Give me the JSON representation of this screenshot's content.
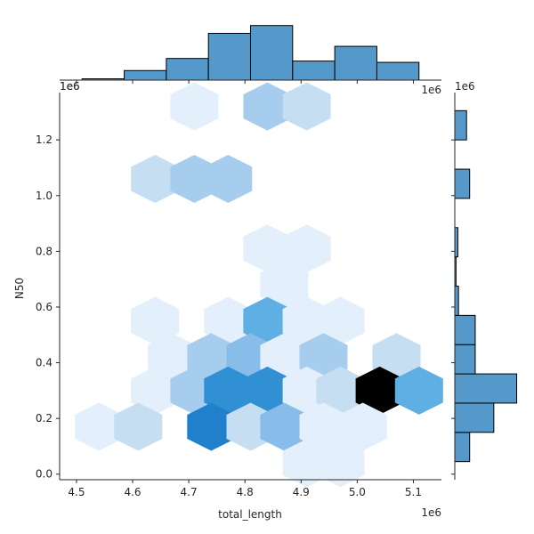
{
  "chart_data": [
    {
      "type": "heatmap",
      "subtype": "hexbin",
      "title": "",
      "xlabel": "total_length",
      "ylabel": "N50",
      "x_offset_label": "1e6",
      "y_offset_label": "1e6",
      "xlim": [
        4.47,
        5.15
      ],
      "ylim": [
        -0.02,
        1.37
      ],
      "x_ticks": [
        4.5,
        4.6,
        4.7,
        4.8,
        4.9,
        5.0,
        5.1
      ],
      "x_tick_labels": [
        "4.5",
        "4.6",
        "4.7",
        "4.8",
        "4.9",
        "5.0",
        "5.1"
      ],
      "y_ticks": [
        0.0,
        0.2,
        0.4,
        0.6,
        0.8,
        1.0,
        1.2
      ],
      "y_tick_labels": [
        "0.0",
        "0.2",
        "0.4",
        "0.6",
        "0.8",
        "1.0",
        "1.2"
      ],
      "grid": false,
      "color_low": "#e3effa",
      "color_mid": "#3a93d6",
      "color_high": "#000000",
      "hex_cells": [
        {
          "x": 4.71,
          "y": 1.32,
          "level": 1
        },
        {
          "x": 4.84,
          "y": 1.32,
          "level": 3
        },
        {
          "x": 4.91,
          "y": 1.32,
          "level": 2
        },
        {
          "x": 4.64,
          "y": 1.06,
          "level": 2
        },
        {
          "x": 4.71,
          "y": 1.06,
          "level": 3
        },
        {
          "x": 4.77,
          "y": 1.06,
          "level": 3
        },
        {
          "x": 4.84,
          "y": 0.81,
          "level": 1
        },
        {
          "x": 4.91,
          "y": 0.81,
          "level": 1
        },
        {
          "x": 4.87,
          "y": 0.68,
          "level": 1
        },
        {
          "x": 4.64,
          "y": 0.55,
          "level": 1
        },
        {
          "x": 4.77,
          "y": 0.55,
          "level": 1
        },
        {
          "x": 4.84,
          "y": 0.55,
          "level": 5
        },
        {
          "x": 4.91,
          "y": 0.55,
          "level": 1
        },
        {
          "x": 4.97,
          "y": 0.55,
          "level": 1
        },
        {
          "x": 4.67,
          "y": 0.42,
          "level": 1
        },
        {
          "x": 4.74,
          "y": 0.42,
          "level": 3
        },
        {
          "x": 4.81,
          "y": 0.42,
          "level": 4
        },
        {
          "x": 4.87,
          "y": 0.42,
          "level": 1
        },
        {
          "x": 4.94,
          "y": 0.42,
          "level": 3
        },
        {
          "x": 5.07,
          "y": 0.42,
          "level": 2
        },
        {
          "x": 4.64,
          "y": 0.3,
          "level": 1
        },
        {
          "x": 4.71,
          "y": 0.3,
          "level": 3
        },
        {
          "x": 4.77,
          "y": 0.3,
          "level": 6
        },
        {
          "x": 4.84,
          "y": 0.3,
          "level": 6
        },
        {
          "x": 4.91,
          "y": 0.3,
          "level": 1
        },
        {
          "x": 4.97,
          "y": 0.3,
          "level": 2
        },
        {
          "x": 5.04,
          "y": 0.3,
          "level": 9
        },
        {
          "x": 5.11,
          "y": 0.3,
          "level": 5
        },
        {
          "x": 4.54,
          "y": 0.17,
          "level": 1
        },
        {
          "x": 4.61,
          "y": 0.17,
          "level": 2
        },
        {
          "x": 4.74,
          "y": 0.17,
          "level": 7
        },
        {
          "x": 4.81,
          "y": 0.17,
          "level": 2
        },
        {
          "x": 4.87,
          "y": 0.17,
          "level": 4
        },
        {
          "x": 4.94,
          "y": 0.17,
          "level": 1
        },
        {
          "x": 5.01,
          "y": 0.17,
          "level": 1
        },
        {
          "x": 4.91,
          "y": 0.04,
          "level": 1
        },
        {
          "x": 4.97,
          "y": 0.04,
          "level": 1
        }
      ]
    },
    {
      "type": "bar",
      "subtype": "histogram-top",
      "variable": "total_length",
      "bin_edges": [
        4.51,
        4.585,
        4.66,
        4.735,
        4.81,
        4.885,
        4.96,
        5.035,
        5.11
      ],
      "counts": [
        0.3,
        2.2,
        5.0,
        10.8,
        12.6,
        4.4,
        7.8,
        4.1
      ],
      "color": "#5599cb"
    },
    {
      "type": "bar",
      "subtype": "histogram-right",
      "variable": "N50",
      "bin_edges": [
        0.045,
        0.15,
        0.255,
        0.36,
        0.465,
        0.57,
        0.675,
        0.78,
        0.885,
        0.99,
        1.095,
        1.2,
        1.305
      ],
      "counts": [
        2.4,
        6.3,
        10.0,
        3.3,
        3.3,
        0.6,
        0.2,
        0.5,
        0.0,
        2.4,
        0.0,
        1.9
      ],
      "color": "#5599cb"
    }
  ]
}
